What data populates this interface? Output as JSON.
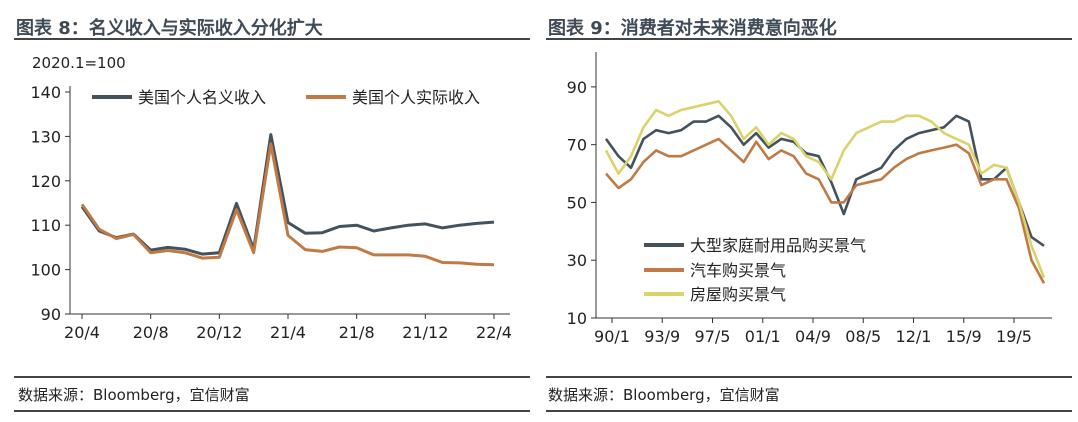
{
  "left_panel": {
    "title": "图表 8：名义收入与实际收入分化扩大",
    "source": "数据来源：Bloomberg，宜信财富"
  },
  "right_panel": {
    "title": "图表 9：消费者对未来消费意向恶化",
    "source": "数据来源：Bloomberg，宜信财富"
  },
  "chart_data": [
    {
      "type": "line",
      "title": "",
      "unit_note": "2020.1=100",
      "xlabel": "",
      "ylabel": "",
      "ylim": [
        90,
        140
      ],
      "y_ticks": [
        90,
        100,
        110,
        120,
        130,
        140
      ],
      "x_ticks": [
        "20/4",
        "20/8",
        "20/12",
        "21/4",
        "21/8",
        "21/12",
        "22/4"
      ],
      "legend_position": "top",
      "grid": false,
      "x": [
        "20/4",
        "20/5",
        "20/6",
        "20/7",
        "20/8",
        "20/9",
        "20/10",
        "20/11",
        "20/12",
        "21/1",
        "21/2",
        "21/3",
        "21/4",
        "21/5",
        "21/6",
        "21/7",
        "21/8",
        "21/9",
        "21/10",
        "21/11",
        "21/12",
        "22/1",
        "22/2",
        "22/3",
        "22/4"
      ],
      "series": [
        {
          "name": "美国个人名义收入",
          "color": "#44525e",
          "values": [
            114.2,
            108.7,
            107.2,
            108.0,
            104.4,
            105.0,
            104.6,
            103.5,
            103.8,
            114.9,
            104.6,
            130.4,
            110.6,
            108.2,
            108.3,
            109.7,
            110.0,
            108.7,
            109.4,
            110.0,
            110.3,
            109.4,
            110.0,
            110.4,
            110.7
          ]
        },
        {
          "name": "美国个人实际收入",
          "color": "#c07a45",
          "values": [
            114.7,
            109.1,
            107.0,
            107.9,
            103.8,
            104.3,
            103.8,
            102.6,
            102.8,
            113.5,
            103.8,
            128.3,
            107.7,
            104.5,
            104.1,
            105.1,
            104.9,
            103.3,
            103.3,
            103.3,
            103.0,
            101.6,
            101.5,
            101.2,
            101.1
          ]
        }
      ]
    },
    {
      "type": "line",
      "title": "",
      "xlabel": "",
      "ylabel": "",
      "ylim": [
        10,
        100
      ],
      "y_ticks": [
        10,
        30,
        50,
        70,
        90
      ],
      "x_ticks": [
        "90/1",
        "93/9",
        "97/5",
        "01/1",
        "04/9",
        "08/5",
        "12/1",
        "15/9",
        "19/5"
      ],
      "legend_position": "bottom-left",
      "grid": false,
      "x": [
        "90/1",
        "91/1",
        "92/1",
        "93/1",
        "94/1",
        "95/1",
        "96/1",
        "97/1",
        "98/1",
        "99/1",
        "00/1",
        "01/1",
        "02/1",
        "03/1",
        "04/1",
        "05/1",
        "06/1",
        "07/1",
        "08/1",
        "09/1",
        "10/1",
        "11/1",
        "12/1",
        "13/1",
        "14/1",
        "15/1",
        "16/1",
        "17/1",
        "18/1",
        "19/1",
        "20/1",
        "20/7",
        "21/1",
        "21/7",
        "22/1",
        "22/6"
      ],
      "series": [
        {
          "name": "大型家庭耐用品购买景气",
          "color": "#44525e",
          "values": [
            72,
            66,
            62,
            72,
            75,
            74,
            75,
            78,
            78,
            80,
            76,
            70,
            74,
            69,
            72,
            71,
            67,
            66,
            57,
            46,
            58,
            60,
            62,
            68,
            72,
            74,
            75,
            76,
            80,
            78,
            58,
            58,
            62,
            50,
            38,
            35
          ]
        },
        {
          "name": "汽车购买景气",
          "color": "#c07a45",
          "values": [
            60,
            55,
            58,
            64,
            68,
            66,
            66,
            68,
            70,
            72,
            68,
            64,
            71,
            65,
            68,
            66,
            60,
            58,
            50,
            50,
            56,
            57,
            58,
            62,
            65,
            67,
            68,
            69,
            70,
            67,
            56,
            58,
            58,
            48,
            30,
            22
          ]
        },
        {
          "name": "房屋购买景气",
          "color": "#d9d36a",
          "values": [
            68,
            60,
            66,
            76,
            82,
            80,
            82,
            83,
            84,
            85,
            80,
            72,
            76,
            70,
            74,
            72,
            66,
            64,
            58,
            68,
            74,
            76,
            78,
            78,
            80,
            80,
            78,
            74,
            72,
            70,
            60,
            63,
            62,
            50,
            35,
            24
          ]
        }
      ]
    }
  ]
}
